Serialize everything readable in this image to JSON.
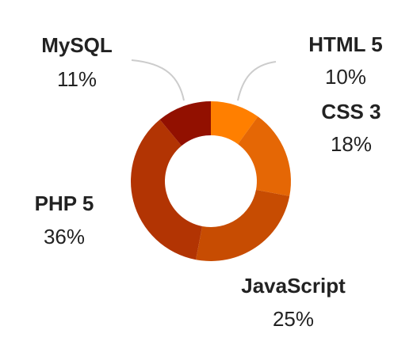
{
  "chart_data": {
    "type": "pie",
    "donut": true,
    "start_angle_deg": 0,
    "direction": "clockwise",
    "title": "",
    "series": [
      {
        "label": "HTML 5",
        "value": 10,
        "value_label": "10%",
        "color": "#FF7F00"
      },
      {
        "label": "CSS 3",
        "value": 18,
        "value_label": "18%",
        "color": "#E56705"
      },
      {
        "label": "JavaScript",
        "value": 25,
        "value_label": "25%",
        "color": "#C74C02"
      },
      {
        "label": "PHP 5",
        "value": 36,
        "value_label": "36%",
        "color": "#B23403"
      },
      {
        "label": "MySQL",
        "value": 11,
        "value_label": "11%",
        "color": "#921000"
      }
    ],
    "leader_line_color": "#CCCCCC",
    "label_color": "#222222"
  }
}
